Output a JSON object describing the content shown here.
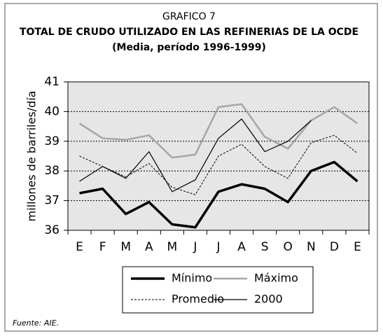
{
  "chart_data": {
    "type": "line",
    "caption": "GRAFICO 7",
    "title": "TOTAL DE CRUDO UTILIZADO EN LAS REFINERIAS DE LA OCDE",
    "subtitle": "(Media, período 1996-1999)",
    "y_label": "millones de barriles/día",
    "source": "Fuente: AIE.",
    "categories": [
      "E",
      "F",
      "M",
      "A",
      "M",
      "J",
      "J",
      "A",
      "S",
      "O",
      "N",
      "D",
      "E"
    ],
    "series": [
      {
        "name": "Mínimo",
        "color": "#000000",
        "width": 3.5,
        "dash": "none",
        "values": [
          37.25,
          37.4,
          36.55,
          36.95,
          36.2,
          36.1,
          37.3,
          37.55,
          37.4,
          36.95,
          38.0,
          38.3,
          37.65
        ]
      },
      {
        "name": "Máximo",
        "color": "#a6a6a6",
        "width": 2.5,
        "dash": "none",
        "values": [
          39.6,
          39.1,
          39.05,
          39.2,
          38.45,
          38.55,
          40.15,
          40.25,
          39.15,
          38.75,
          39.7,
          40.15,
          39.6
        ]
      },
      {
        "name": "Promedio",
        "color": "#000000",
        "width": 1,
        "dash": "3 2",
        "values": [
          38.5,
          38.15,
          37.8,
          38.25,
          37.45,
          37.2,
          38.5,
          38.9,
          38.15,
          37.75,
          38.95,
          39.2,
          38.6
        ]
      },
      {
        "name": "2000",
        "color": "#000000",
        "width": 1.2,
        "dash": "none",
        "values": [
          37.65,
          38.15,
          37.75,
          38.65,
          37.3,
          37.7,
          39.1,
          39.75,
          38.65,
          39.0,
          39.7,
          null,
          null
        ]
      }
    ],
    "ylim": [
      36,
      41
    ],
    "yticks": [
      36,
      37,
      38,
      39,
      40,
      41
    ],
    "grid": true,
    "legend": "bottom",
    "plot_background": "#e6e6e6"
  }
}
